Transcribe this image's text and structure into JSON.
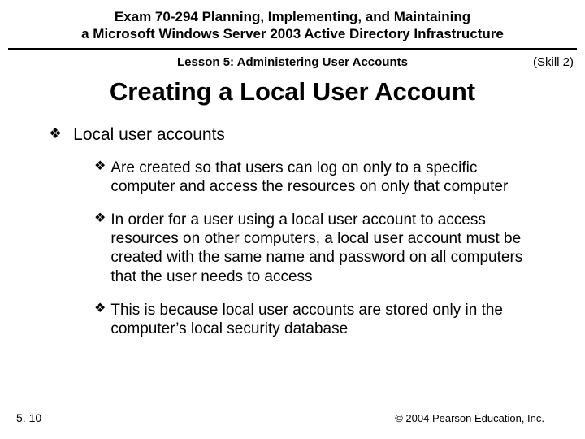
{
  "header": {
    "exam_line1": "Exam 70-294 Planning, Implementing, and Maintaining",
    "exam_line2": "a Microsoft Windows Server 2003 Active Directory Infrastructure"
  },
  "lesson": {
    "text": "Lesson 5: Administering User Accounts",
    "skill": "(Skill 2)"
  },
  "title": "Creating a Local User Account",
  "bullets": {
    "main": "Local user accounts",
    "sub1": "Are created so that users can log on only to a specific computer and access the resources on only that computer",
    "sub2": "In order for a user using a local user account to access resources on other computers, a local user account must be created with the same name and password on all computers that the user needs to access",
    "sub3": "This is because local user accounts are stored only in the computer’s local security database"
  },
  "footer": {
    "page": "5. 10",
    "copyright": "© 2004 Pearson Education, Inc."
  },
  "style": {
    "diamond": "❖"
  }
}
